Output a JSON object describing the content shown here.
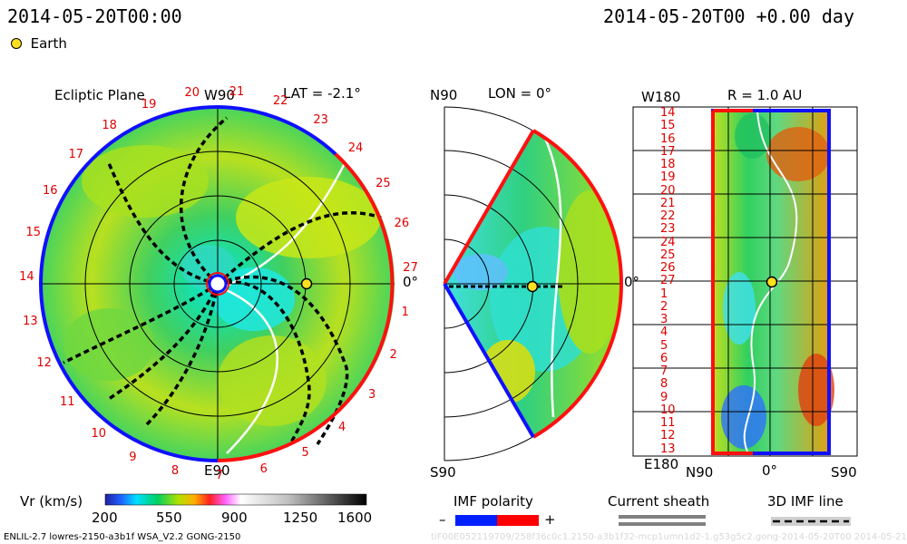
{
  "header": {
    "left_time": "2014-05-20T00:00",
    "right_time": "2014-05-20T00 +0.00 day"
  },
  "legend": {
    "earth_label": "Earth",
    "earth_color": "#ffe020"
  },
  "panels": {
    "ecliptic": {
      "title": "Ecliptic Plane",
      "lat": "LAT = -2.1°",
      "top_label": "W90",
      "bottom_label": "E90",
      "right_label": "0°"
    },
    "meridional": {
      "top_label": "N90",
      "lon": "LON = 0°",
      "bottom_label": "S90",
      "right_label": "0°"
    },
    "map": {
      "title": "R = 1.0 AU",
      "top_left": "W180",
      "bottom_left": "E180",
      "x_labels": [
        "N90",
        "0°",
        "S90"
      ]
    }
  },
  "ecliptic_numbers": [
    "20",
    "21",
    "22",
    "23",
    "24",
    "25",
    "26",
    "27",
    "1",
    "2",
    "3",
    "4",
    "5",
    "6",
    "7",
    "8",
    "9",
    "10",
    "11",
    "12",
    "13",
    "14",
    "15",
    "16",
    "17",
    "18",
    "19"
  ],
  "map_y_labels": [
    "14",
    "15",
    "16",
    "17",
    "18",
    "19",
    "20",
    "21",
    "22",
    "23",
    "24",
    "25",
    "26",
    "27",
    "1",
    "2",
    "3",
    "4",
    "5",
    "6",
    "7",
    "8",
    "9",
    "10",
    "11",
    "12",
    "13"
  ],
  "colorbar": {
    "label": "Vr (km/s)",
    "ticks": [
      "200",
      "550",
      "900",
      "1250",
      "1600"
    ],
    "range": [
      200,
      1600
    ]
  },
  "imf_polarity": {
    "label": "IMF polarity",
    "minus": "–",
    "plus": "+",
    "neg_color": "#0020ff",
    "pos_color": "#ff0000"
  },
  "current_sheath": {
    "label": "Current sheath"
  },
  "imf_line": {
    "label": "3D IMF line"
  },
  "footer": {
    "left": "ENLIL-2.7 lowres-2150-a3b1f WSA_V2.2 GONG-2150",
    "right": "tiF00E052119709/258f36c0c1.2150-a3b1f32-mcp1umn1d2-1.g53g5c2.gong-2014-05-20T00   2014-05-21"
  }
}
